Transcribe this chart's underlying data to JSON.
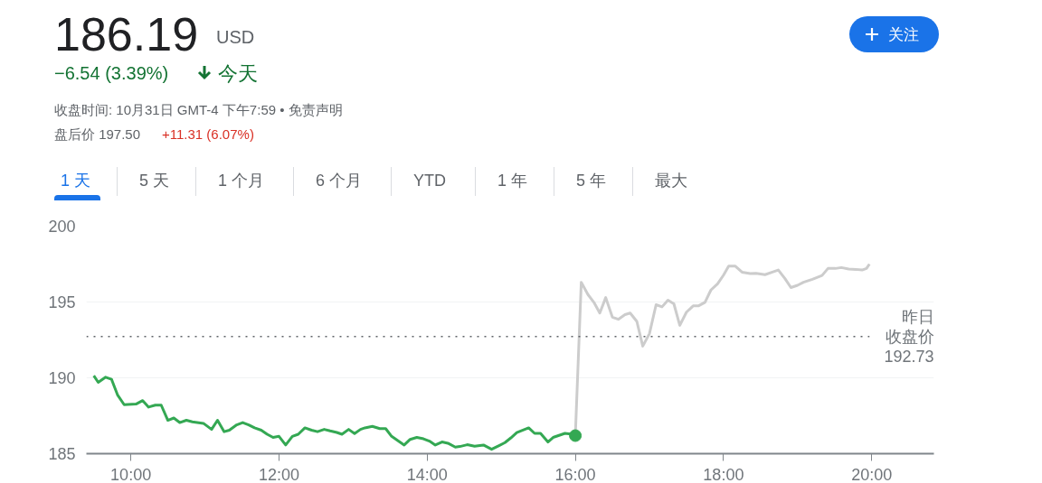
{
  "chart_data": {
    "type": "line",
    "title": "186.19",
    "annotations": [
      "USD",
      "−6.54 (3.39%)",
      "今天",
      "收盘时间: 10月31日 GMT-4 下午7:59 • 免责声明",
      "盘后价 197.50",
      "+11.31 (6.07%)",
      "1 天",
      "5 天",
      "1 个月",
      "6 个月",
      "YTD",
      "1 年",
      "5 年",
      "最大",
      "关注",
      "192.73"
    ],
    "series": [
      {
        "color": "#34a853",
        "x": [
          9.5,
          9.56,
          9.66,
          9.74,
          9.82,
          9.91,
          10.07,
          10.16,
          10.24,
          10.33,
          10.41,
          10.5,
          10.58,
          10.66,
          10.75,
          10.83,
          10.98,
          11.09,
          11.17,
          11.26,
          11.33,
          11.43,
          11.51,
          11.59,
          11.67,
          11.76,
          11.84,
          11.92,
          12.0,
          12.09,
          12.18,
          12.26,
          12.35,
          12.44,
          12.52,
          12.61,
          12.69,
          12.78,
          12.85,
          12.94,
          13.02,
          13.1,
          13.16,
          13.26,
          13.36,
          13.44,
          13.52,
          13.69,
          13.77,
          13.86,
          13.95,
          14.03,
          14.11,
          14.2,
          14.28,
          14.38,
          14.44,
          14.54,
          14.64,
          14.76,
          14.87,
          14.97,
          15.05,
          15.13,
          15.21,
          15.37,
          15.45,
          15.53,
          15.63,
          15.7,
          15.86,
          15.96,
          16.0
        ],
        "values": [
          190.14,
          189.7,
          190.04,
          189.9,
          188.88,
          188.23,
          188.27,
          188.5,
          188.07,
          188.2,
          188.2,
          187.2,
          187.35,
          187.05,
          187.2,
          187.1,
          187.0,
          186.6,
          187.2,
          186.45,
          186.55,
          186.9,
          187.05,
          186.9,
          186.7,
          186.55,
          186.28,
          186.07,
          186.14,
          185.57,
          186.14,
          186.28,
          186.7,
          186.55,
          186.45,
          186.6,
          186.5,
          186.4,
          186.28,
          186.6,
          186.33,
          186.6,
          186.7,
          186.8,
          186.65,
          186.65,
          186.14,
          185.57,
          185.94,
          186.07,
          185.98,
          185.83,
          185.57,
          185.77,
          185.69,
          185.43,
          185.47,
          185.59,
          185.49,
          185.57,
          185.29,
          185.53,
          185.73,
          186.04,
          186.39,
          186.7,
          186.34,
          186.34,
          185.77,
          186.07,
          186.34,
          186.28,
          186.19
        ]
      },
      {
        "color": "#cccccc",
        "x": [
          16.0,
          16.08,
          16.17,
          16.25,
          16.33,
          16.41,
          16.5,
          16.58,
          16.67,
          16.74,
          16.83,
          16.91,
          17.0,
          17.09,
          17.17,
          17.25,
          17.33,
          17.41,
          17.5,
          17.59,
          17.66,
          17.75,
          17.83,
          17.92,
          18.0,
          18.07,
          18.16,
          18.25,
          18.36,
          18.44,
          18.56,
          18.66,
          18.74,
          18.83,
          18.91,
          19.0,
          19.08,
          19.2,
          19.33,
          19.41,
          19.51,
          19.59,
          19.69,
          19.79,
          19.87,
          19.93,
          19.97
        ],
        "values": [
          186.19,
          196.3,
          195.49,
          194.98,
          194.27,
          195.29,
          194.0,
          193.86,
          194.17,
          194.27,
          193.72,
          192.09,
          192.91,
          194.82,
          194.68,
          195.12,
          194.88,
          193.46,
          194.33,
          194.74,
          194.74,
          194.98,
          195.79,
          196.2,
          196.77,
          197.36,
          197.36,
          196.97,
          196.87,
          196.89,
          196.8,
          196.97,
          197.11,
          196.54,
          195.95,
          196.1,
          196.3,
          196.5,
          196.75,
          197.21,
          197.21,
          197.27,
          197.17,
          197.15,
          197.11,
          197.21,
          197.5
        ]
      },
      {
        "type": "scatter",
        "color": "#34a853",
        "x": [
          16.0
        ],
        "values": [
          186.19
        ],
        "marker": "circle"
      }
    ],
    "xlim": [
      9.4,
      20.84
    ],
    "xticks": [
      {
        "value": 10,
        "label": "10:00"
      },
      {
        "value": 12,
        "label": "12:00"
      },
      {
        "value": 14,
        "label": "14:00"
      },
      {
        "value": 16,
        "label": "16:00"
      },
      {
        "value": 18,
        "label": "18:00"
      },
      {
        "value": 20,
        "label": "20:00"
      }
    ],
    "ylim": [
      185,
      200
    ],
    "yticks": [
      185,
      190,
      195,
      200
    ],
    "grid": "y",
    "ref_lines": [
      {
        "axis": "y",
        "value": 192.73,
        "label": "昨日收盘价",
        "color": "#5f6368",
        "line_style": "dotted"
      }
    ]
  }
}
